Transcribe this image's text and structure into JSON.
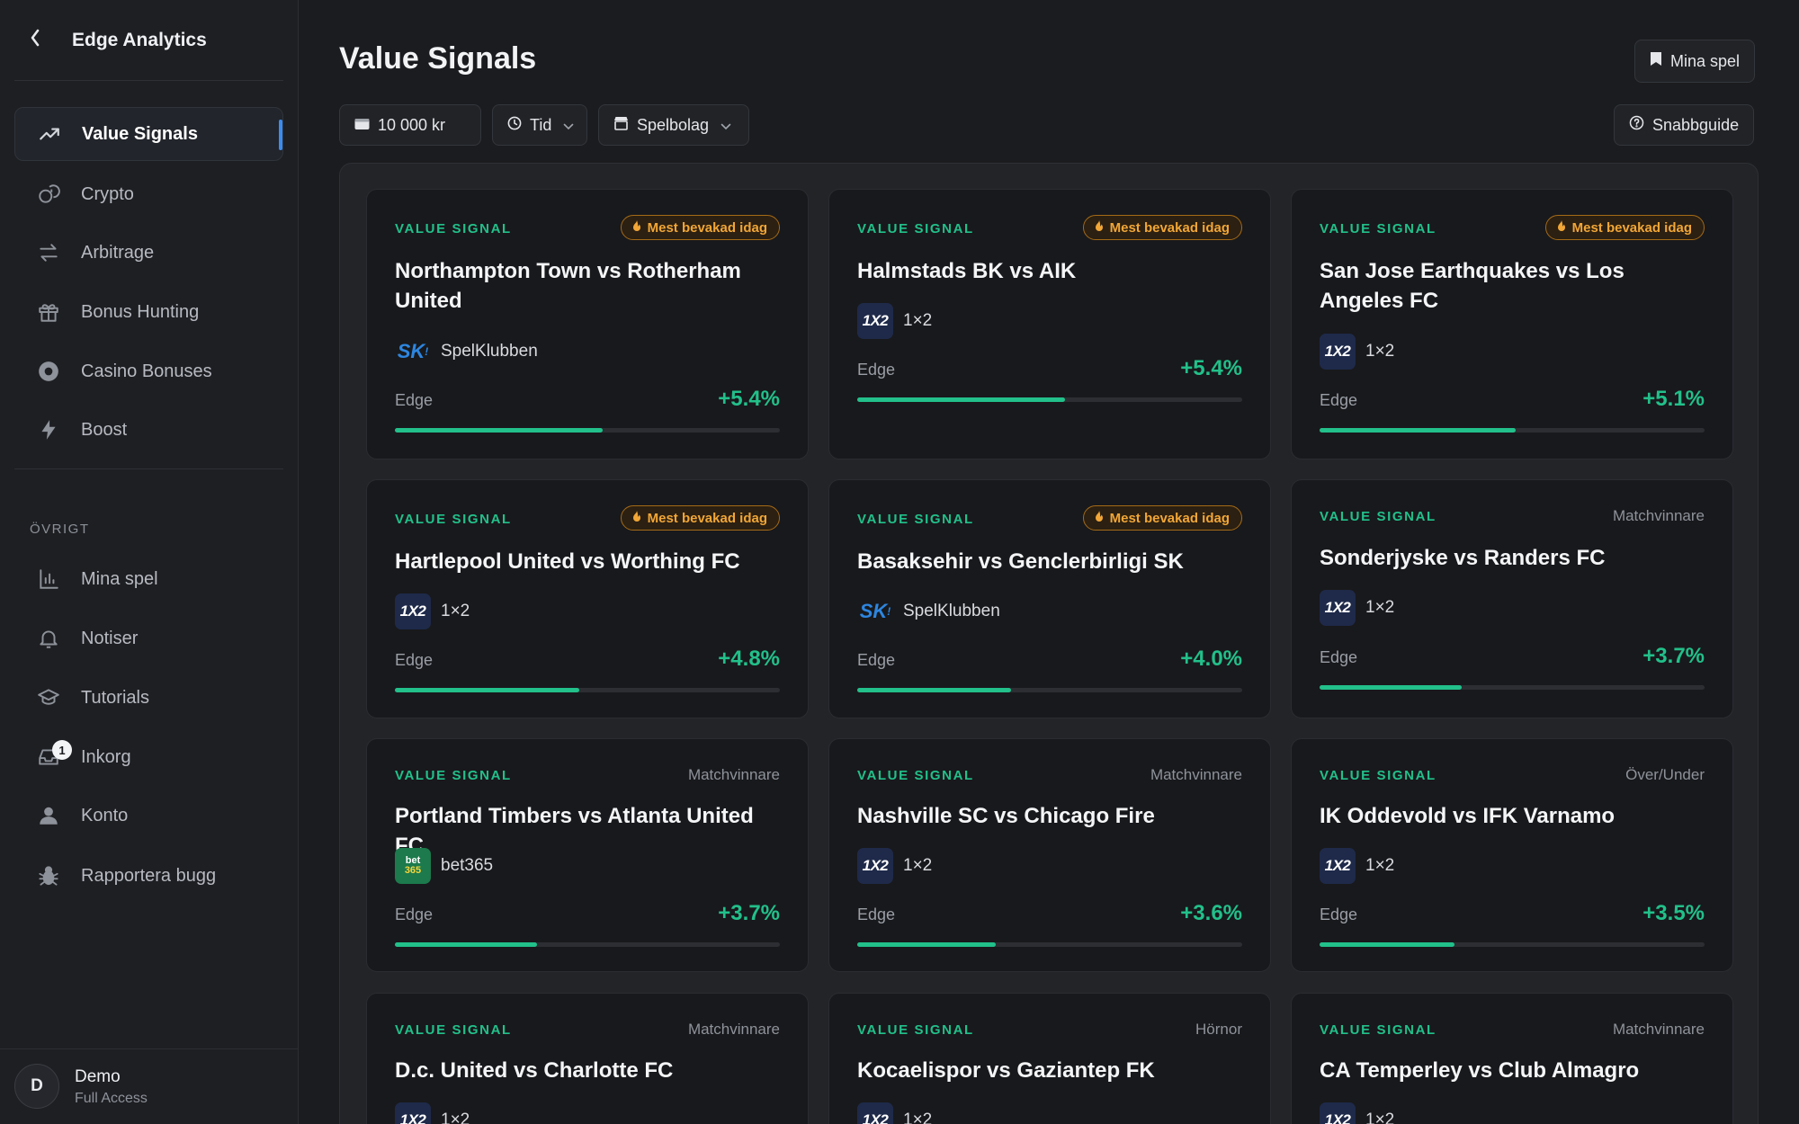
{
  "app": {
    "name": "Edge Analytics",
    "back_icon": "chevron-left-icon"
  },
  "sidebar": {
    "items": [
      {
        "label": "Value Signals",
        "icon": "trending-up-icon",
        "active": true
      },
      {
        "label": "Crypto",
        "icon": "coins-icon"
      },
      {
        "label": "Arbitrage",
        "icon": "arrows-swap-icon"
      },
      {
        "label": "Bonus Hunting",
        "icon": "gift-icon"
      },
      {
        "label": "Casino Bonuses",
        "icon": "chip-icon"
      },
      {
        "label": "Boost",
        "icon": "bolt-icon"
      }
    ],
    "section_label": "ÖVRIGT",
    "other_items": [
      {
        "label": "Mina spel",
        "icon": "bar-chart-icon"
      },
      {
        "label": "Notiser",
        "icon": "bell-icon"
      },
      {
        "label": "Tutorials",
        "icon": "graduation-cap-icon"
      },
      {
        "label": "Inkorg",
        "icon": "inbox-icon",
        "badge": "1"
      },
      {
        "label": "Konto",
        "icon": "user-icon"
      },
      {
        "label": "Rapportera bugg",
        "icon": "bug-icon"
      }
    ],
    "user": {
      "initial": "D",
      "name": "Demo",
      "role": "Full Access"
    }
  },
  "header": {
    "title": "Value Signals",
    "my_bets_label": "Mina spel",
    "bankroll_value": "10 000 kr",
    "time_filter_label": "Tid",
    "bookmaker_filter_label": "Spelbolag",
    "quick_guide_label": "Snabbguide"
  },
  "colors": {
    "accent": "#22c08a",
    "active_indicator": "#3b8cf0",
    "hot_badge": "#f2a636",
    "background": "#1b1c1f"
  },
  "signals": [
    {
      "tag": "VALUE SIGNAL",
      "badge": "Mest bevakad idag",
      "title": "Northampton Town vs Rotherham United",
      "bookmaker": "SpelKlubben",
      "logo": "sk",
      "edge_label": "Edge",
      "edge": "+5.4%",
      "edge_fraction": 0.54
    },
    {
      "tag": "VALUE SIGNAL",
      "badge": "Mest bevakad idag",
      "title": "Halmstads BK vs AIK",
      "bookmaker": "1×2",
      "logo": "1x2",
      "edge_label": "Edge",
      "edge": "+5.4%",
      "edge_fraction": 0.54
    },
    {
      "tag": "VALUE SIGNAL",
      "badge": "Mest bevakad idag",
      "title": "San Jose Earthquakes vs Los Angeles FC",
      "bookmaker": "1×2",
      "logo": "1x2",
      "edge_label": "Edge",
      "edge": "+5.1%",
      "edge_fraction": 0.51
    },
    {
      "tag": "VALUE SIGNAL",
      "badge": "Mest bevakad idag",
      "title": "Hartlepool United vs Worthing FC",
      "bookmaker": "1×2",
      "logo": "1x2",
      "edge_label": "Edge",
      "edge": "+4.8%",
      "edge_fraction": 0.48
    },
    {
      "tag": "VALUE SIGNAL",
      "badge": "Mest bevakad idag",
      "title": "Basaksehir vs Genclerbirligi SK",
      "bookmaker": "SpelKlubben",
      "logo": "sk",
      "edge_label": "Edge",
      "edge": "+4.0%",
      "edge_fraction": 0.4
    },
    {
      "tag": "VALUE SIGNAL",
      "market": "Matchvinnare",
      "title": "Sonderjyske vs Randers FC",
      "bookmaker": "1×2",
      "logo": "1x2",
      "edge_label": "Edge",
      "edge": "+3.7%",
      "edge_fraction": 0.37
    },
    {
      "tag": "VALUE SIGNAL",
      "market": "Matchvinnare",
      "title": "Portland Timbers vs Atlanta United FC",
      "bookmaker": "bet365",
      "logo": "bet365",
      "edge_label": "Edge",
      "edge": "+3.7%",
      "edge_fraction": 0.37
    },
    {
      "tag": "VALUE SIGNAL",
      "market": "Matchvinnare",
      "title": "Nashville SC vs Chicago Fire",
      "bookmaker": "1×2",
      "logo": "1x2",
      "edge_label": "Edge",
      "edge": "+3.6%",
      "edge_fraction": 0.36
    },
    {
      "tag": "VALUE SIGNAL",
      "market": "Över/Under",
      "title": "IK Oddevold vs IFK Varnamo",
      "bookmaker": "1×2",
      "logo": "1x2",
      "edge_label": "Edge",
      "edge": "+3.5%",
      "edge_fraction": 0.35
    },
    {
      "tag": "VALUE SIGNAL",
      "market": "Matchvinnare",
      "title": "D.c. United vs Charlotte FC",
      "bookmaker": "1×2",
      "logo": "1x2"
    },
    {
      "tag": "VALUE SIGNAL",
      "market": "Hörnor",
      "title": "Kocaelispor vs Gaziantep FK",
      "bookmaker": "1×2",
      "logo": "1x2"
    },
    {
      "tag": "VALUE SIGNAL",
      "market": "Matchvinnare",
      "title": "CA Temperley vs Club Almagro",
      "bookmaker": "1×2",
      "logo": "1x2"
    }
  ]
}
